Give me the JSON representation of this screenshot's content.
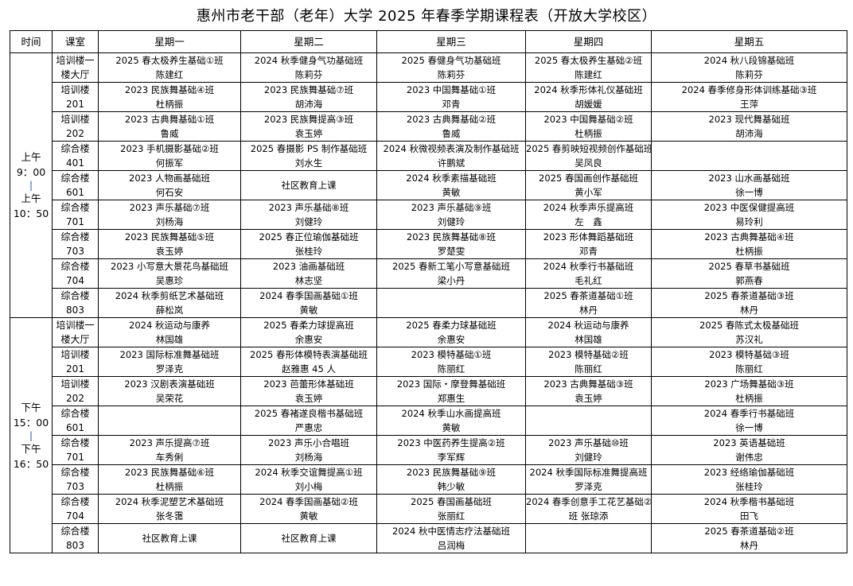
{
  "title": "惠州市老干部（老年）大学 2025 年春季学期课程表（开放大学校区）",
  "headers": [
    "时间",
    "课室",
    "星期一",
    "星期二",
    "星期三",
    "星期四",
    "星期五"
  ],
  "sessions": [
    {
      "time": {
        "start_label": "上午",
        "start": "9：00",
        "sep": "|",
        "end_label": "上午",
        "end": "10：50"
      },
      "rows": [
        {
          "room": [
            "培训楼一",
            "楼大厅"
          ],
          "cells": [
            [
              "2025 春太极养生基础①班",
              "陈建红"
            ],
            [
              "2024 秋季健身气功基础班",
              "陈莉芬"
            ],
            [
              "2025 春健身气功基础班",
              "陈莉芬"
            ],
            [
              "2025 春太极养生基础②班",
              "陈建红"
            ],
            [
              "2024 秋八段锦基础班",
              "陈莉芬"
            ]
          ]
        },
        {
          "room": [
            "培训楼",
            "201"
          ],
          "cells": [
            [
              "2023 民族舞基础④班",
              "杜柄振"
            ],
            [
              "2023 民族舞基础⑦班",
              "胡沛海"
            ],
            [
              "2023 中国舞基础①班",
              "邓青"
            ],
            [
              "2024 秋季形体礼仪基础班",
              "胡媛媛"
            ],
            [
              "2024 春季修身形体训练基础③班",
              "王萍"
            ]
          ]
        },
        {
          "room": [
            "培训楼",
            "202"
          ],
          "cells": [
            [
              "2023 古典舞基础①班",
              "鲁威"
            ],
            [
              "2023 民族舞提高③班",
              "袁玉婷"
            ],
            [
              "2023 古典舞基础②班",
              "鲁威"
            ],
            [
              "2023 中国舞基础②班",
              "杜柄振"
            ],
            [
              "2023 现代舞基础班",
              "胡沛海"
            ]
          ]
        },
        {
          "room": [
            "综合楼",
            "401"
          ],
          "cells": [
            [
              "2023 手机摄影基础②班",
              "何振军"
            ],
            [
              "2025 春摄影 PS 制作基础班",
              "刘水生"
            ],
            [
              "2024 秋微视频表演及制作基础班",
              "许鹏斌"
            ],
            [
              "2025 春剪映短视频创作基础班",
              "吴凤良"
            ],
            []
          ]
        },
        {
          "room": [
            "综合楼",
            "601"
          ],
          "cells": [
            [
              "2023 人物画基础班",
              "何石安"
            ],
            [
              "社区教育上课"
            ],
            [
              "2024 秋季素描基础班",
              "黄敏"
            ],
            [
              "2025 春国画创作基础班",
              "黄小军"
            ],
            [
              "2023 山水画基础班",
              "徐一博"
            ]
          ]
        },
        {
          "room": [
            "综合楼",
            "701"
          ],
          "cells": [
            [
              "2023 声乐基础⑦班",
              "刘杨海"
            ],
            [
              "2023 声乐基础⑧班",
              "刘健玲"
            ],
            [
              "2023 声乐基础⑨班",
              "刘健玲"
            ],
            [
              "2024 秋季声乐提高班",
              "左　鑫"
            ],
            [
              "2023 中医保健提高班",
              "易玲利"
            ]
          ]
        },
        {
          "room": [
            "综合楼",
            "703"
          ],
          "cells": [
            [
              "2023 民族舞基础⑤班",
              "袁玉婷"
            ],
            [
              "2025 春正位瑜伽基础班",
              "张桂玲"
            ],
            [
              "2023 民族舞基础⑧班",
              "罗楚雯"
            ],
            [
              "2023 形体舞蹈基础班",
              "邓青"
            ],
            [
              "2023 古典舞基础④班",
              "杜柄振"
            ]
          ]
        },
        {
          "room": [
            "综合楼",
            "704"
          ],
          "cells": [
            [
              "2023 小写意大景花鸟基础班",
              "吴惠珍"
            ],
            [
              "2023 油画基础班",
              "林志坚"
            ],
            [
              "2025 春新工笔小写意基础班",
              "梁小丹"
            ],
            [
              "2024 秋季行书基础班",
              "毛礼红"
            ],
            [
              "2025 春草书基础班",
              "郭燕春"
            ]
          ]
        },
        {
          "room": [
            "综合楼",
            "803"
          ],
          "cells": [
            [
              "2024 秋季剪纸艺术基础班",
              "薛松岚"
            ],
            [
              "2024 春季国画基础①班",
              "黄敏"
            ],
            [],
            [
              "2025 春茶道基础①班",
              "林丹"
            ],
            [
              "2025 春茶道基础③班",
              "林丹"
            ]
          ]
        }
      ]
    },
    {
      "time": {
        "start_label": "下午",
        "start": "15：00",
        "sep": "|",
        "end_label": "下午",
        "end": "16：50"
      },
      "rows": [
        {
          "room": [
            "培训楼一",
            "楼大厅"
          ],
          "cells": [
            [
              "2024 秋运动与康养",
              "林国雄"
            ],
            [
              "2025 春柔力球提高班",
              "余惠安"
            ],
            [
              "2025 春柔力球基础班",
              "余惠安"
            ],
            [
              "2024 秋运动与康养",
              "林国雄"
            ],
            [
              "2025 春陈式太极基础班",
              "苏汉礼"
            ]
          ]
        },
        {
          "room": [
            "培训楼",
            "201"
          ],
          "cells": [
            [
              "2023 国际标准舞基础班",
              "罗泽克"
            ],
            [
              "2025 春形体模特表演基础班",
              "赵雅惠 45 人"
            ],
            [
              "2023 模特基础①班",
              "陈丽红"
            ],
            [
              "2023 模特基础②班",
              "陈丽红"
            ],
            [
              "2023 模特基础③班",
              "陈丽红"
            ]
          ]
        },
        {
          "room": [
            "培训楼",
            "202"
          ],
          "cells": [
            [
              "2023 汉剧表演基础班",
              "吴荣花"
            ],
            [
              "2023 芭蕾形体基础班",
              "袁玉婷"
            ],
            [
              "2023 国际・摩登舞基础班",
              "郑惠生"
            ],
            [
              "2023 古典舞基础③班",
              "袁玉婷"
            ],
            [
              "2023 广场舞基础③班",
              "杜柄振"
            ]
          ]
        },
        {
          "room": [
            "综合楼",
            "601"
          ],
          "cells": [
            [],
            [
              "2025 春褚遂良楷书基础班",
              "严惠忠"
            ],
            [
              "2024 秋季山水画提高班",
              "黄敏"
            ],
            [],
            [
              "2024 春季行书基础班",
              "徐一博"
            ]
          ]
        },
        {
          "room": [
            "综合楼",
            "701"
          ],
          "cells": [
            [
              "2023 声乐提高⑦班",
              "车秀俐"
            ],
            [
              "2023 声乐小合唱班",
              "刘杨海"
            ],
            [
              "2023 中医药养生提高②班",
              "李军辉"
            ],
            [
              "2023 声乐基础⑩班",
              "刘健玲"
            ],
            [
              "2023 英语基础班",
              "谢伟忠"
            ]
          ]
        },
        {
          "room": [
            "综合楼",
            "703"
          ],
          "cells": [
            [
              "2023 民族舞基础⑥班",
              "杜柄振"
            ],
            [
              "2024 秋季交谊舞提高①班",
              "刘小梅"
            ],
            [
              "2023 民族舞基础⑨班",
              "韩少敏"
            ],
            [
              "2024 秋季国际标准舞提高班",
              "罗泽克"
            ],
            [
              "2023 经络瑜伽基础班",
              "张桂玲"
            ]
          ]
        },
        {
          "room": [
            "综合楼",
            "704"
          ],
          "cells": [
            [
              "2024 秋季泥塑艺术基础班",
              "张冬霭"
            ],
            [
              "2024 春季国画基础②班",
              "黄敏"
            ],
            [
              "2025 春国画基础班",
              "张丽红"
            ],
            [
              "2024 春季创意手工花艺基础②",
              "班  张琼添"
            ],
            [
              "2024 秋季楷书基础班",
              "田飞"
            ]
          ]
        },
        {
          "room": [
            "综合楼",
            "803"
          ],
          "cells": [
            [
              "社区教育上课"
            ],
            [
              "社区教育上课"
            ],
            [
              "2024 秋中医情志疗法基础班",
              "吕润梅"
            ],
            [],
            [
              "2025 春茶道基础②班",
              "林丹"
            ]
          ]
        }
      ]
    }
  ]
}
